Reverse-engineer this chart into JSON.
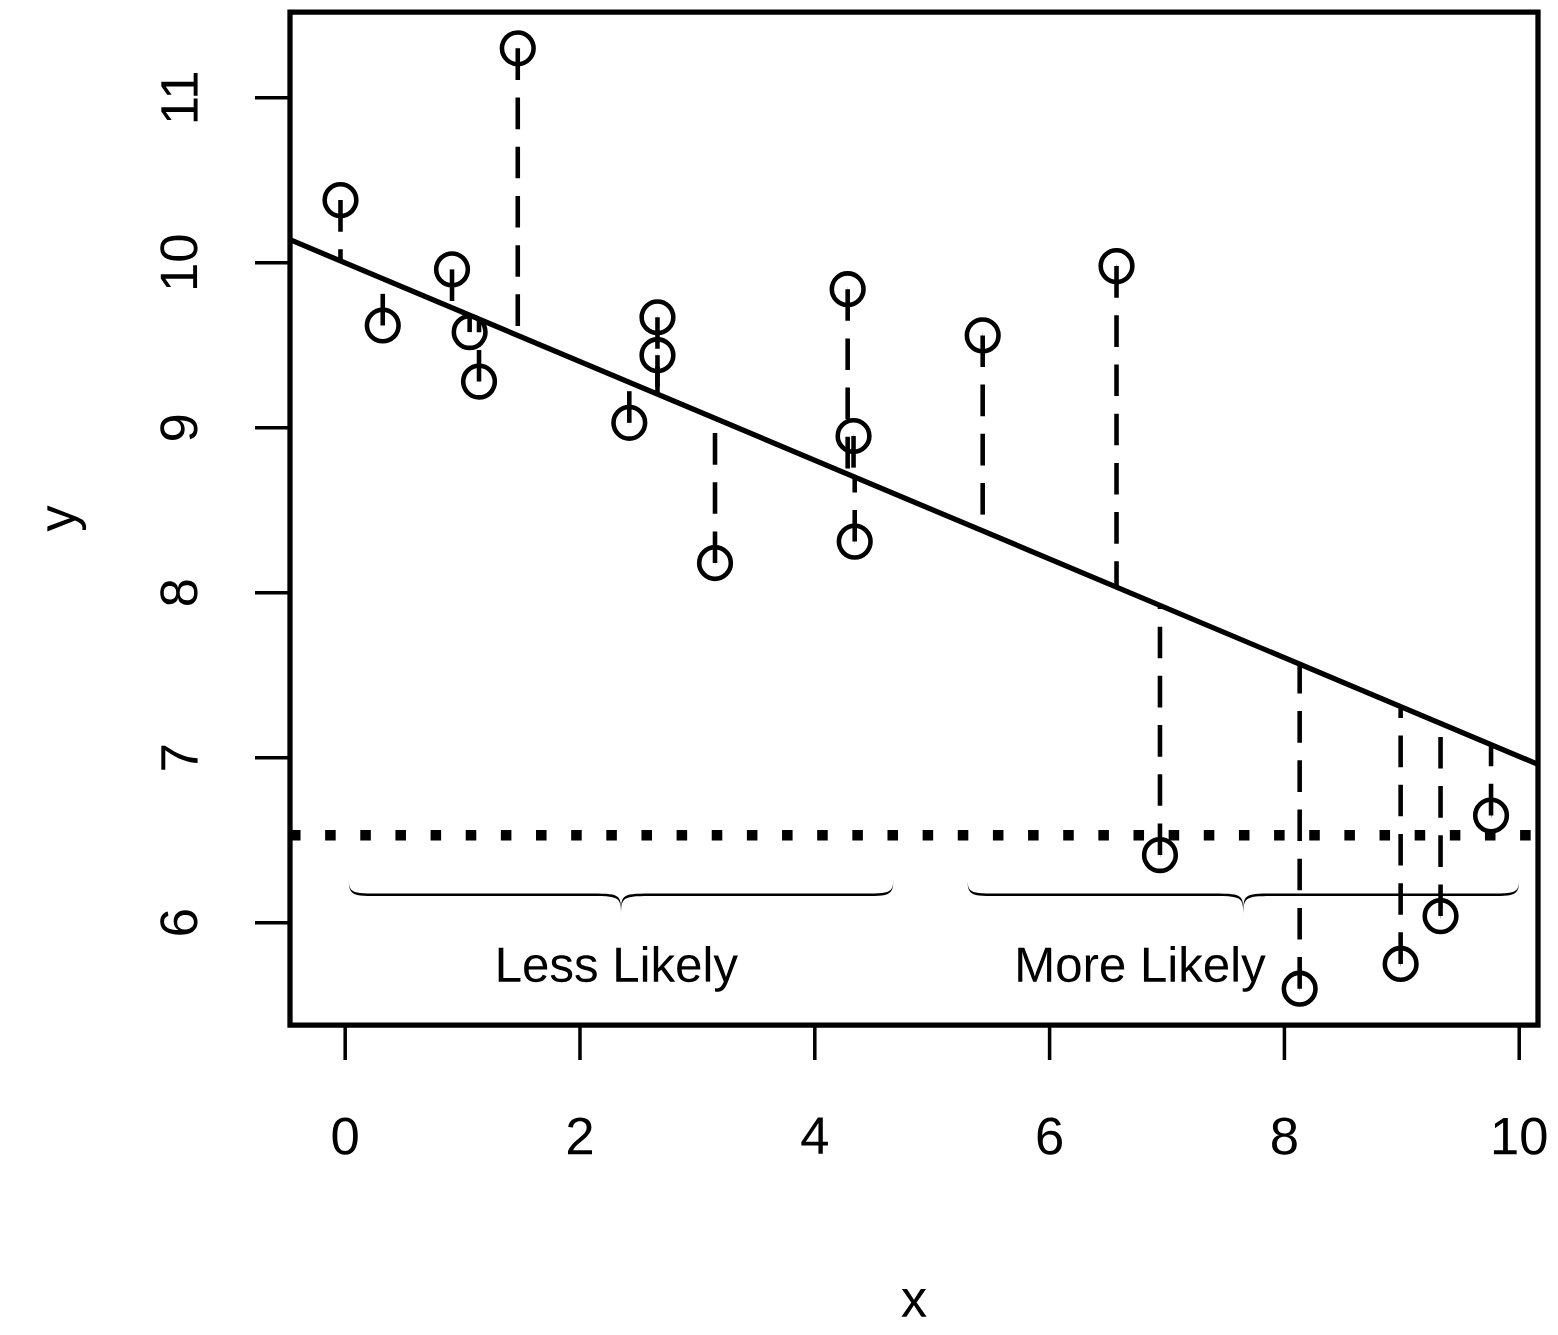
{
  "chart_data": {
    "type": "scatter",
    "xlabel": "x",
    "ylabel": "y",
    "xlim": [
      -0.47,
      10.16
    ],
    "ylim": [
      5.38,
      11.52
    ],
    "xticks": [
      0,
      2,
      4,
      6,
      8,
      10
    ],
    "yticks": [
      6,
      7,
      8,
      9,
      10,
      11
    ],
    "marker": "circle",
    "series": [
      {
        "color": "#000000",
        "x": [
          -0.04,
          0.32,
          0.91,
          1.06,
          1.14,
          1.47,
          2.42,
          2.66,
          2.66,
          3.15,
          4.28,
          4.33,
          4.34,
          5.43,
          6.57,
          6.94,
          8.13,
          8.99,
          9.33,
          9.76
        ],
        "values": [
          10.38,
          9.62,
          9.96,
          9.58,
          9.28,
          11.3,
          9.03,
          9.67,
          9.44,
          8.18,
          9.84,
          8.95,
          8.31,
          9.56,
          9.98,
          6.41,
          5.6,
          5.75,
          6.04,
          6.65
        ],
        "errors": [
          [
            10.01,
            10.38
          ],
          [
            9.62,
            9.9
          ],
          [
            9.73,
            9.96
          ],
          [
            9.58,
            9.68
          ],
          [
            9.28,
            9.66
          ],
          [
            9.56,
            11.3
          ],
          [
            9.03,
            9.27
          ],
          [
            9.2,
            9.67
          ],
          [
            9.2,
            9.44
          ],
          [
            8.18,
            9.06
          ],
          [
            8.72,
            9.84
          ],
          [
            8.7,
            8.95
          ],
          [
            8.31,
            8.7
          ],
          [
            8.37,
            9.56
          ],
          [
            8.03,
            9.98
          ],
          [
            6.41,
            7.92
          ],
          [
            5.6,
            7.56
          ],
          [
            5.75,
            7.3
          ],
          [
            6.04,
            7.2
          ],
          [
            6.65,
            7.07
          ]
        ]
      },
      {
        "type": "line",
        "color": "#000000",
        "x": [
          -0.47,
          10.16
        ],
        "values": [
          10.14,
          6.96
        ],
        "line_style": "solid",
        "marker": "none"
      }
    ],
    "ref_lines": [
      {
        "axis": "y",
        "value": 6.53,
        "line_style": "dotted",
        "color": "#000000"
      }
    ],
    "annotations": [
      "Less Likely",
      "More Likely"
    ]
  }
}
